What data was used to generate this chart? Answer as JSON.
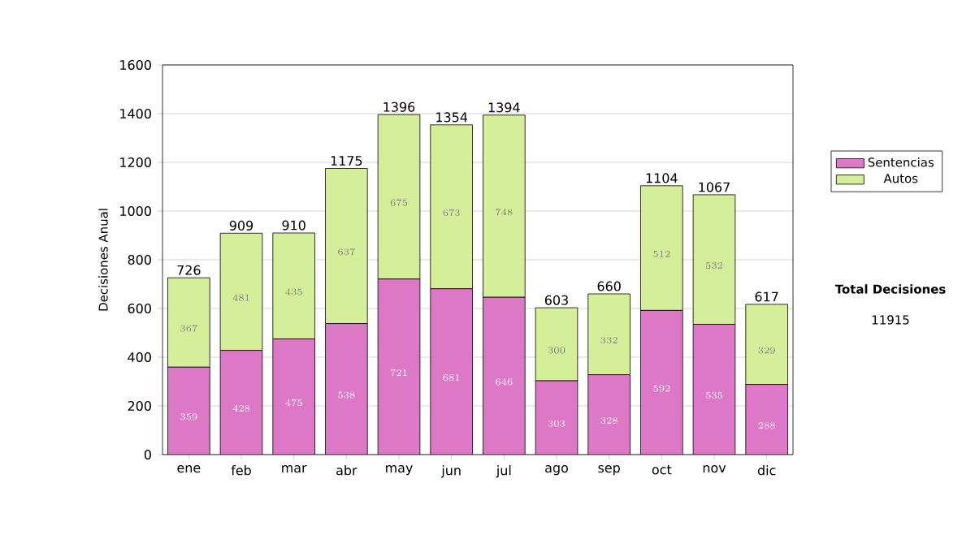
{
  "chart_data": {
    "type": "bar",
    "stacked": true,
    "ylabel": "Decisiones Anual",
    "categories": [
      "ene",
      "feb",
      "mar",
      "abr",
      "may",
      "jun",
      "jul",
      "ago",
      "sep",
      "oct",
      "nov",
      "dic"
    ],
    "series": [
      {
        "name": "Sentencias",
        "color": "#dd78c6",
        "values": [
          359,
          428,
          475,
          538,
          721,
          681,
          646,
          303,
          328,
          592,
          535,
          288
        ]
      },
      {
        "name": "Autos",
        "color": "#d5ee9a",
        "values": [
          367,
          481,
          435,
          637,
          675,
          673,
          748,
          300,
          332,
          512,
          532,
          329
        ]
      }
    ],
    "totals": [
      "726",
      "909",
      "910",
      "1175",
      "1396",
      "1354",
      "1394",
      "603",
      "660",
      "1104",
      "1067",
      "617"
    ],
    "data_labels": true,
    "ylim": [
      0,
      1600
    ],
    "yticks": [
      0,
      200,
      400,
      600,
      800,
      1000,
      1200,
      1400,
      1600
    ],
    "grid": "y",
    "legend": "right",
    "annotations": [
      "Total Decisiones",
      "11915"
    ]
  }
}
